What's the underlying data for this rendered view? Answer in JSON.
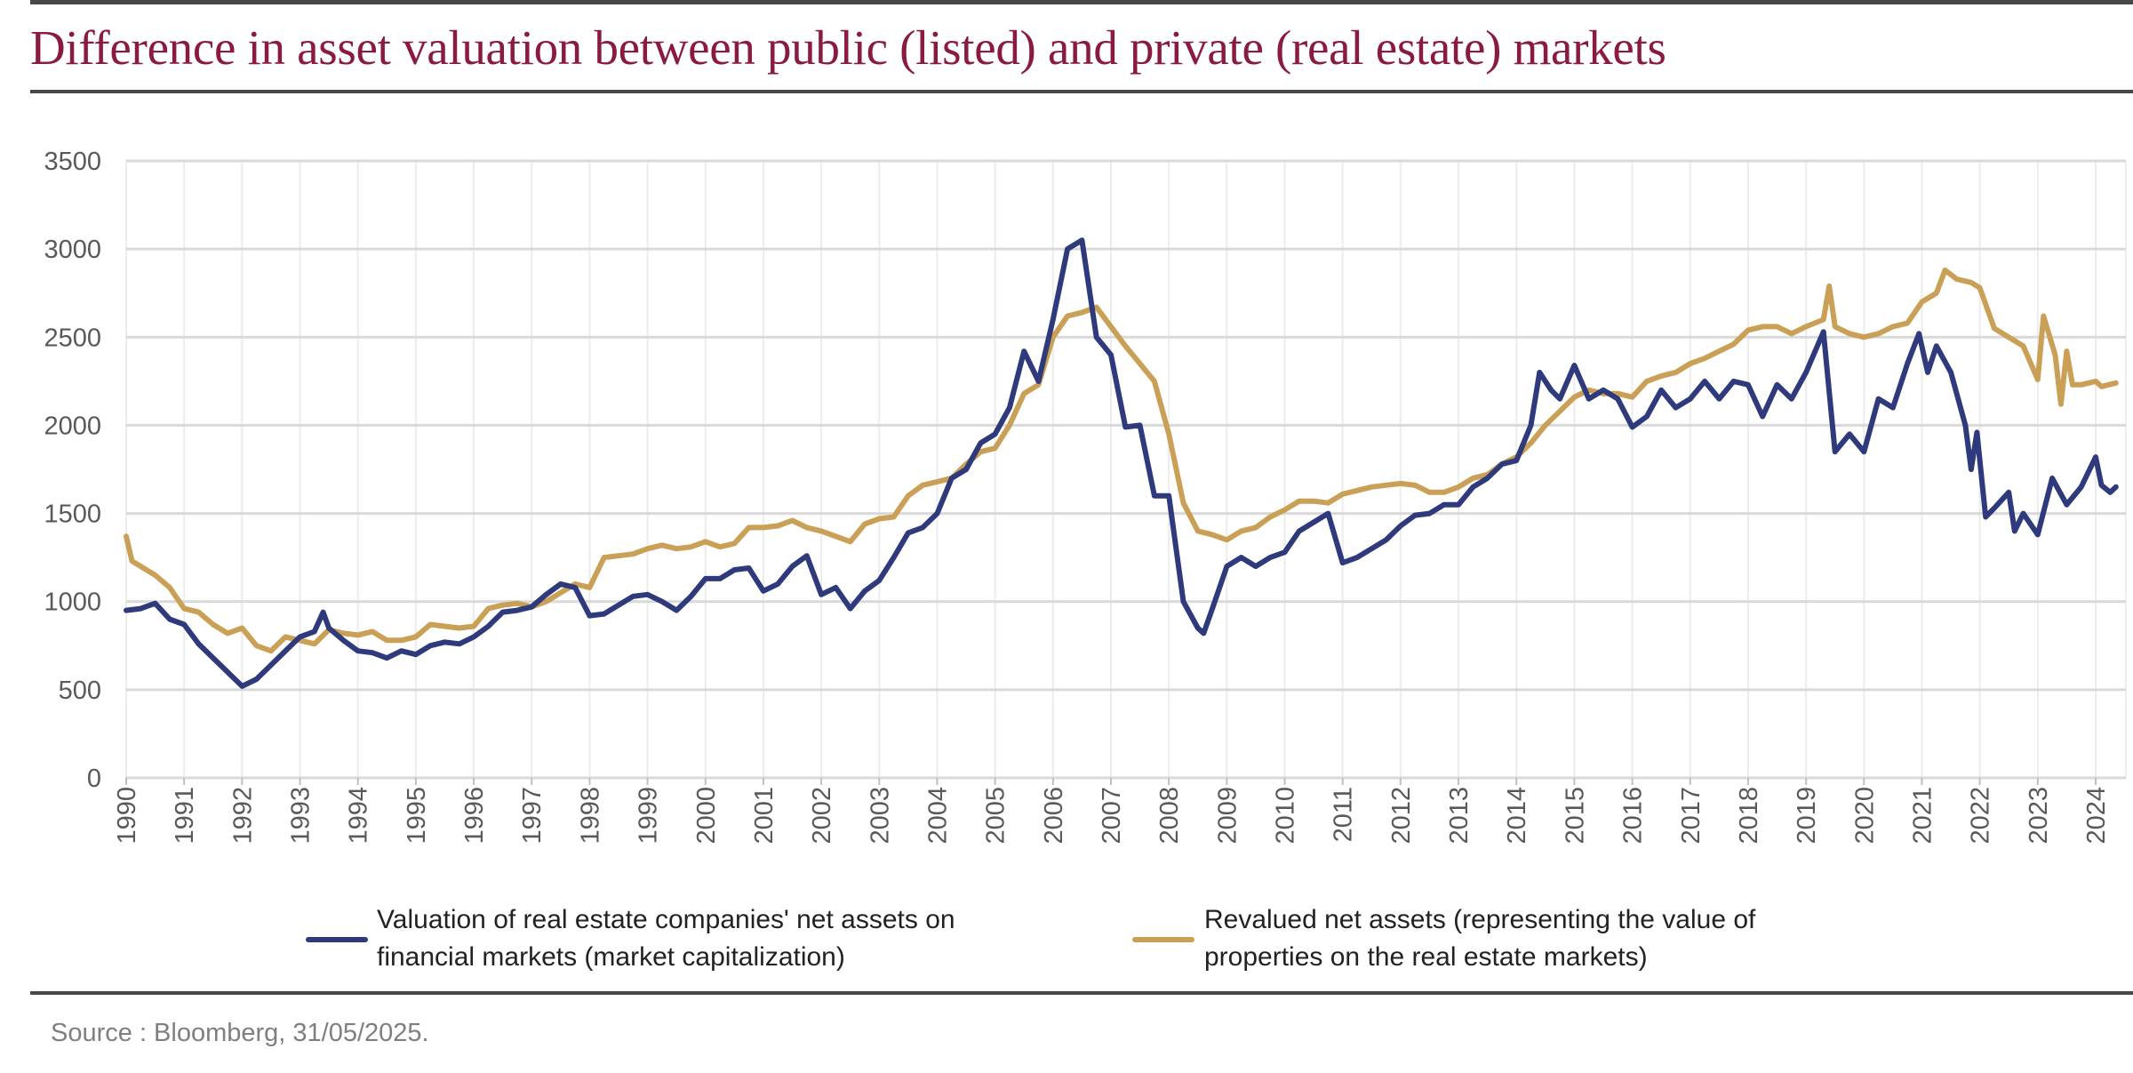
{
  "title": "Difference in asset valuation between public (listed) and private (real estate) markets",
  "source": "Source : Bloomberg, 31/05/2025.",
  "colors": {
    "title": "#8b1a3f",
    "series_market": "#2e3a7c",
    "series_revalued": "#c9a055",
    "grid": "#d9d9d9"
  },
  "chart_data": {
    "type": "line",
    "title": "",
    "xlabel": "",
    "ylabel": "",
    "xlim": [
      1990,
      2024.4
    ],
    "ylim": [
      0,
      3500
    ],
    "yticks": [
      "0",
      "500",
      "1000",
      "1500",
      "2000",
      "2500",
      "3000",
      "3500"
    ],
    "xticks": [
      "1990",
      "1991",
      "1992",
      "1993",
      "1994",
      "1995",
      "1996",
      "1997",
      "1998",
      "1999",
      "2000",
      "2001",
      "2002",
      "2003",
      "2004",
      "2005",
      "2006",
      "2007",
      "2008",
      "2009",
      "2010",
      "2011",
      "2012",
      "2013",
      "2014",
      "2015",
      "2016",
      "2017",
      "2018",
      "2019",
      "2020",
      "2021",
      "2022",
      "2023",
      "2024"
    ],
    "grid": true,
    "legend_placement": "bottom",
    "series": [
      {
        "name": "Valuation of real estate companies' net assets on financial markets (market capitalization)",
        "color": "#2e3a7c",
        "points": [
          [
            1990,
            950
          ],
          [
            1990.25,
            960
          ],
          [
            1990.5,
            990
          ],
          [
            1990.75,
            900
          ],
          [
            1991,
            870
          ],
          [
            1991.25,
            760
          ],
          [
            1991.5,
            680
          ],
          [
            1991.75,
            600
          ],
          [
            1992,
            520
          ],
          [
            1992.25,
            560
          ],
          [
            1992.5,
            640
          ],
          [
            1992.75,
            720
          ],
          [
            1993,
            800
          ],
          [
            1993.25,
            830
          ],
          [
            1993.4,
            940
          ],
          [
            1993.5,
            850
          ],
          [
            1993.75,
            780
          ],
          [
            1994,
            720
          ],
          [
            1994.25,
            710
          ],
          [
            1994.5,
            680
          ],
          [
            1994.75,
            720
          ],
          [
            1995,
            700
          ],
          [
            1995.25,
            750
          ],
          [
            1995.5,
            770
          ],
          [
            1995.75,
            760
          ],
          [
            1996,
            800
          ],
          [
            1996.25,
            860
          ],
          [
            1996.5,
            940
          ],
          [
            1996.75,
            950
          ],
          [
            1997,
            970
          ],
          [
            1997.25,
            1040
          ],
          [
            1997.5,
            1100
          ],
          [
            1997.75,
            1080
          ],
          [
            1998,
            920
          ],
          [
            1998.25,
            930
          ],
          [
            1998.5,
            980
          ],
          [
            1998.75,
            1030
          ],
          [
            1999,
            1040
          ],
          [
            1999.25,
            1000
          ],
          [
            1999.5,
            950
          ],
          [
            1999.75,
            1030
          ],
          [
            2000,
            1130
          ],
          [
            2000.25,
            1130
          ],
          [
            2000.5,
            1180
          ],
          [
            2000.75,
            1190
          ],
          [
            2001,
            1060
          ],
          [
            2001.25,
            1100
          ],
          [
            2001.5,
            1200
          ],
          [
            2001.75,
            1260
          ],
          [
            2002,
            1040
          ],
          [
            2002.25,
            1080
          ],
          [
            2002.5,
            960
          ],
          [
            2002.75,
            1060
          ],
          [
            2003,
            1120
          ],
          [
            2003.25,
            1250
          ],
          [
            2003.5,
            1390
          ],
          [
            2003.75,
            1420
          ],
          [
            2004,
            1500
          ],
          [
            2004.25,
            1700
          ],
          [
            2004.5,
            1750
          ],
          [
            2004.75,
            1900
          ],
          [
            2005,
            1950
          ],
          [
            2005.25,
            2100
          ],
          [
            2005.5,
            2420
          ],
          [
            2005.75,
            2250
          ],
          [
            2006,
            2600
          ],
          [
            2006.25,
            3000
          ],
          [
            2006.5,
            3050
          ],
          [
            2006.75,
            2500
          ],
          [
            2007,
            2400
          ],
          [
            2007.25,
            1990
          ],
          [
            2007.5,
            2000
          ],
          [
            2007.75,
            1600
          ],
          [
            2008,
            1600
          ],
          [
            2008.25,
            1000
          ],
          [
            2008.5,
            850
          ],
          [
            2008.6,
            820
          ],
          [
            2008.75,
            960
          ],
          [
            2009,
            1200
          ],
          [
            2009.25,
            1250
          ],
          [
            2009.5,
            1200
          ],
          [
            2009.75,
            1250
          ],
          [
            2010,
            1280
          ],
          [
            2010.25,
            1400
          ],
          [
            2010.5,
            1450
          ],
          [
            2010.75,
            1500
          ],
          [
            2011,
            1220
          ],
          [
            2011.25,
            1250
          ],
          [
            2011.5,
            1300
          ],
          [
            2011.75,
            1350
          ],
          [
            2012,
            1430
          ],
          [
            2012.25,
            1490
          ],
          [
            2012.5,
            1500
          ],
          [
            2012.75,
            1550
          ],
          [
            2013,
            1550
          ],
          [
            2013.25,
            1650
          ],
          [
            2013.5,
            1700
          ],
          [
            2013.75,
            1780
          ],
          [
            2014,
            1800
          ],
          [
            2014.25,
            2000
          ],
          [
            2014.4,
            2300
          ],
          [
            2014.6,
            2200
          ],
          [
            2014.75,
            2150
          ],
          [
            2015,
            2340
          ],
          [
            2015.25,
            2150
          ],
          [
            2015.5,
            2200
          ],
          [
            2015.75,
            2150
          ],
          [
            2016,
            1990
          ],
          [
            2016.25,
            2050
          ],
          [
            2016.5,
            2200
          ],
          [
            2016.75,
            2100
          ],
          [
            2017,
            2150
          ],
          [
            2017.25,
            2250
          ],
          [
            2017.5,
            2150
          ],
          [
            2017.75,
            2250
          ],
          [
            2018,
            2230
          ],
          [
            2018.25,
            2050
          ],
          [
            2018.5,
            2230
          ],
          [
            2018.75,
            2150
          ],
          [
            2019,
            2300
          ],
          [
            2019.3,
            2530
          ],
          [
            2019.5,
            1850
          ],
          [
            2019.75,
            1950
          ],
          [
            2020,
            1850
          ],
          [
            2020.25,
            2150
          ],
          [
            2020.5,
            2100
          ],
          [
            2020.75,
            2350
          ],
          [
            2020.95,
            2520
          ],
          [
            2021.1,
            2300
          ],
          [
            2021.25,
            2450
          ],
          [
            2021.5,
            2300
          ],
          [
            2021.75,
            2000
          ],
          [
            2021.85,
            1750
          ],
          [
            2021.95,
            1960
          ],
          [
            2022.1,
            1480
          ],
          [
            2022.25,
            1530
          ],
          [
            2022.5,
            1620
          ],
          [
            2022.6,
            1400
          ],
          [
            2022.75,
            1500
          ],
          [
            2023,
            1380
          ],
          [
            2023.25,
            1700
          ],
          [
            2023.5,
            1550
          ],
          [
            2023.75,
            1650
          ],
          [
            2024,
            1820
          ],
          [
            2024.1,
            1660
          ],
          [
            2024.25,
            1620
          ],
          [
            2024.35,
            1650
          ]
        ]
      },
      {
        "name": "Revalued net assets (representing the value of properties on the real estate markets)",
        "color": "#c9a055",
        "points": [
          [
            1990,
            1370
          ],
          [
            1990.1,
            1230
          ],
          [
            1990.25,
            1200
          ],
          [
            1990.5,
            1150
          ],
          [
            1990.75,
            1080
          ],
          [
            1991,
            960
          ],
          [
            1991.25,
            940
          ],
          [
            1991.5,
            870
          ],
          [
            1991.75,
            820
          ],
          [
            1992,
            850
          ],
          [
            1992.25,
            750
          ],
          [
            1992.5,
            720
          ],
          [
            1992.75,
            800
          ],
          [
            1993,
            780
          ],
          [
            1993.25,
            760
          ],
          [
            1993.5,
            840
          ],
          [
            1993.75,
            820
          ],
          [
            1994,
            810
          ],
          [
            1994.25,
            830
          ],
          [
            1994.5,
            780
          ],
          [
            1994.75,
            780
          ],
          [
            1995,
            800
          ],
          [
            1995.25,
            870
          ],
          [
            1995.5,
            860
          ],
          [
            1995.75,
            850
          ],
          [
            1996,
            860
          ],
          [
            1996.25,
            960
          ],
          [
            1996.5,
            980
          ],
          [
            1996.75,
            990
          ],
          [
            1997,
            970
          ],
          [
            1997.25,
            1000
          ],
          [
            1997.5,
            1050
          ],
          [
            1997.75,
            1100
          ],
          [
            1998,
            1080
          ],
          [
            1998.25,
            1250
          ],
          [
            1998.5,
            1260
          ],
          [
            1998.75,
            1270
          ],
          [
            1999,
            1300
          ],
          [
            1999.25,
            1320
          ],
          [
            1999.5,
            1300
          ],
          [
            1999.75,
            1310
          ],
          [
            2000,
            1340
          ],
          [
            2000.25,
            1310
          ],
          [
            2000.5,
            1330
          ],
          [
            2000.75,
            1420
          ],
          [
            2001,
            1420
          ],
          [
            2001.25,
            1430
          ],
          [
            2001.5,
            1460
          ],
          [
            2001.75,
            1420
          ],
          [
            2002,
            1400
          ],
          [
            2002.25,
            1370
          ],
          [
            2002.5,
            1340
          ],
          [
            2002.75,
            1440
          ],
          [
            2003,
            1470
          ],
          [
            2003.25,
            1480
          ],
          [
            2003.5,
            1600
          ],
          [
            2003.75,
            1660
          ],
          [
            2004,
            1680
          ],
          [
            2004.25,
            1700
          ],
          [
            2004.5,
            1780
          ],
          [
            2004.75,
            1850
          ],
          [
            2005,
            1870
          ],
          [
            2005.25,
            2000
          ],
          [
            2005.5,
            2180
          ],
          [
            2005.75,
            2230
          ],
          [
            2006,
            2500
          ],
          [
            2006.25,
            2620
          ],
          [
            2006.5,
            2640
          ],
          [
            2006.75,
            2670
          ],
          [
            2007,
            2560
          ],
          [
            2007.25,
            2450
          ],
          [
            2007.5,
            2350
          ],
          [
            2007.75,
            2250
          ],
          [
            2008,
            1950
          ],
          [
            2008.25,
            1560
          ],
          [
            2008.5,
            1400
          ],
          [
            2008.75,
            1380
          ],
          [
            2009,
            1350
          ],
          [
            2009.25,
            1400
          ],
          [
            2009.5,
            1420
          ],
          [
            2009.75,
            1480
          ],
          [
            2010,
            1520
          ],
          [
            2010.25,
            1570
          ],
          [
            2010.5,
            1570
          ],
          [
            2010.75,
            1560
          ],
          [
            2011,
            1610
          ],
          [
            2011.25,
            1630
          ],
          [
            2011.5,
            1650
          ],
          [
            2011.75,
            1660
          ],
          [
            2012,
            1670
          ],
          [
            2012.25,
            1660
          ],
          [
            2012.5,
            1620
          ],
          [
            2012.75,
            1620
          ],
          [
            2013,
            1650
          ],
          [
            2013.25,
            1700
          ],
          [
            2013.5,
            1720
          ],
          [
            2013.75,
            1780
          ],
          [
            2014,
            1820
          ],
          [
            2014.25,
            1900
          ],
          [
            2014.5,
            2000
          ],
          [
            2014.75,
            2080
          ],
          [
            2015,
            2160
          ],
          [
            2015.25,
            2200
          ],
          [
            2015.5,
            2180
          ],
          [
            2015.75,
            2180
          ],
          [
            2016,
            2160
          ],
          [
            2016.25,
            2250
          ],
          [
            2016.5,
            2280
          ],
          [
            2016.75,
            2300
          ],
          [
            2017,
            2350
          ],
          [
            2017.25,
            2380
          ],
          [
            2017.5,
            2420
          ],
          [
            2017.75,
            2460
          ],
          [
            2018,
            2540
          ],
          [
            2018.25,
            2560
          ],
          [
            2018.5,
            2560
          ],
          [
            2018.75,
            2520
          ],
          [
            2019,
            2560
          ],
          [
            2019.3,
            2600
          ],
          [
            2019.4,
            2790
          ],
          [
            2019.5,
            2560
          ],
          [
            2019.75,
            2520
          ],
          [
            2020,
            2500
          ],
          [
            2020.25,
            2520
          ],
          [
            2020.5,
            2560
          ],
          [
            2020.75,
            2580
          ],
          [
            2021,
            2700
          ],
          [
            2021.25,
            2750
          ],
          [
            2021.4,
            2880
          ],
          [
            2021.6,
            2830
          ],
          [
            2021.85,
            2810
          ],
          [
            2022,
            2780
          ],
          [
            2022.25,
            2550
          ],
          [
            2022.5,
            2500
          ],
          [
            2022.75,
            2450
          ],
          [
            2023,
            2260
          ],
          [
            2023.1,
            2620
          ],
          [
            2023.3,
            2400
          ],
          [
            2023.4,
            2120
          ],
          [
            2023.5,
            2420
          ],
          [
            2023.6,
            2230
          ],
          [
            2023.75,
            2230
          ],
          [
            2024,
            2250
          ],
          [
            2024.1,
            2220
          ],
          [
            2024.35,
            2240
          ]
        ]
      }
    ]
  }
}
